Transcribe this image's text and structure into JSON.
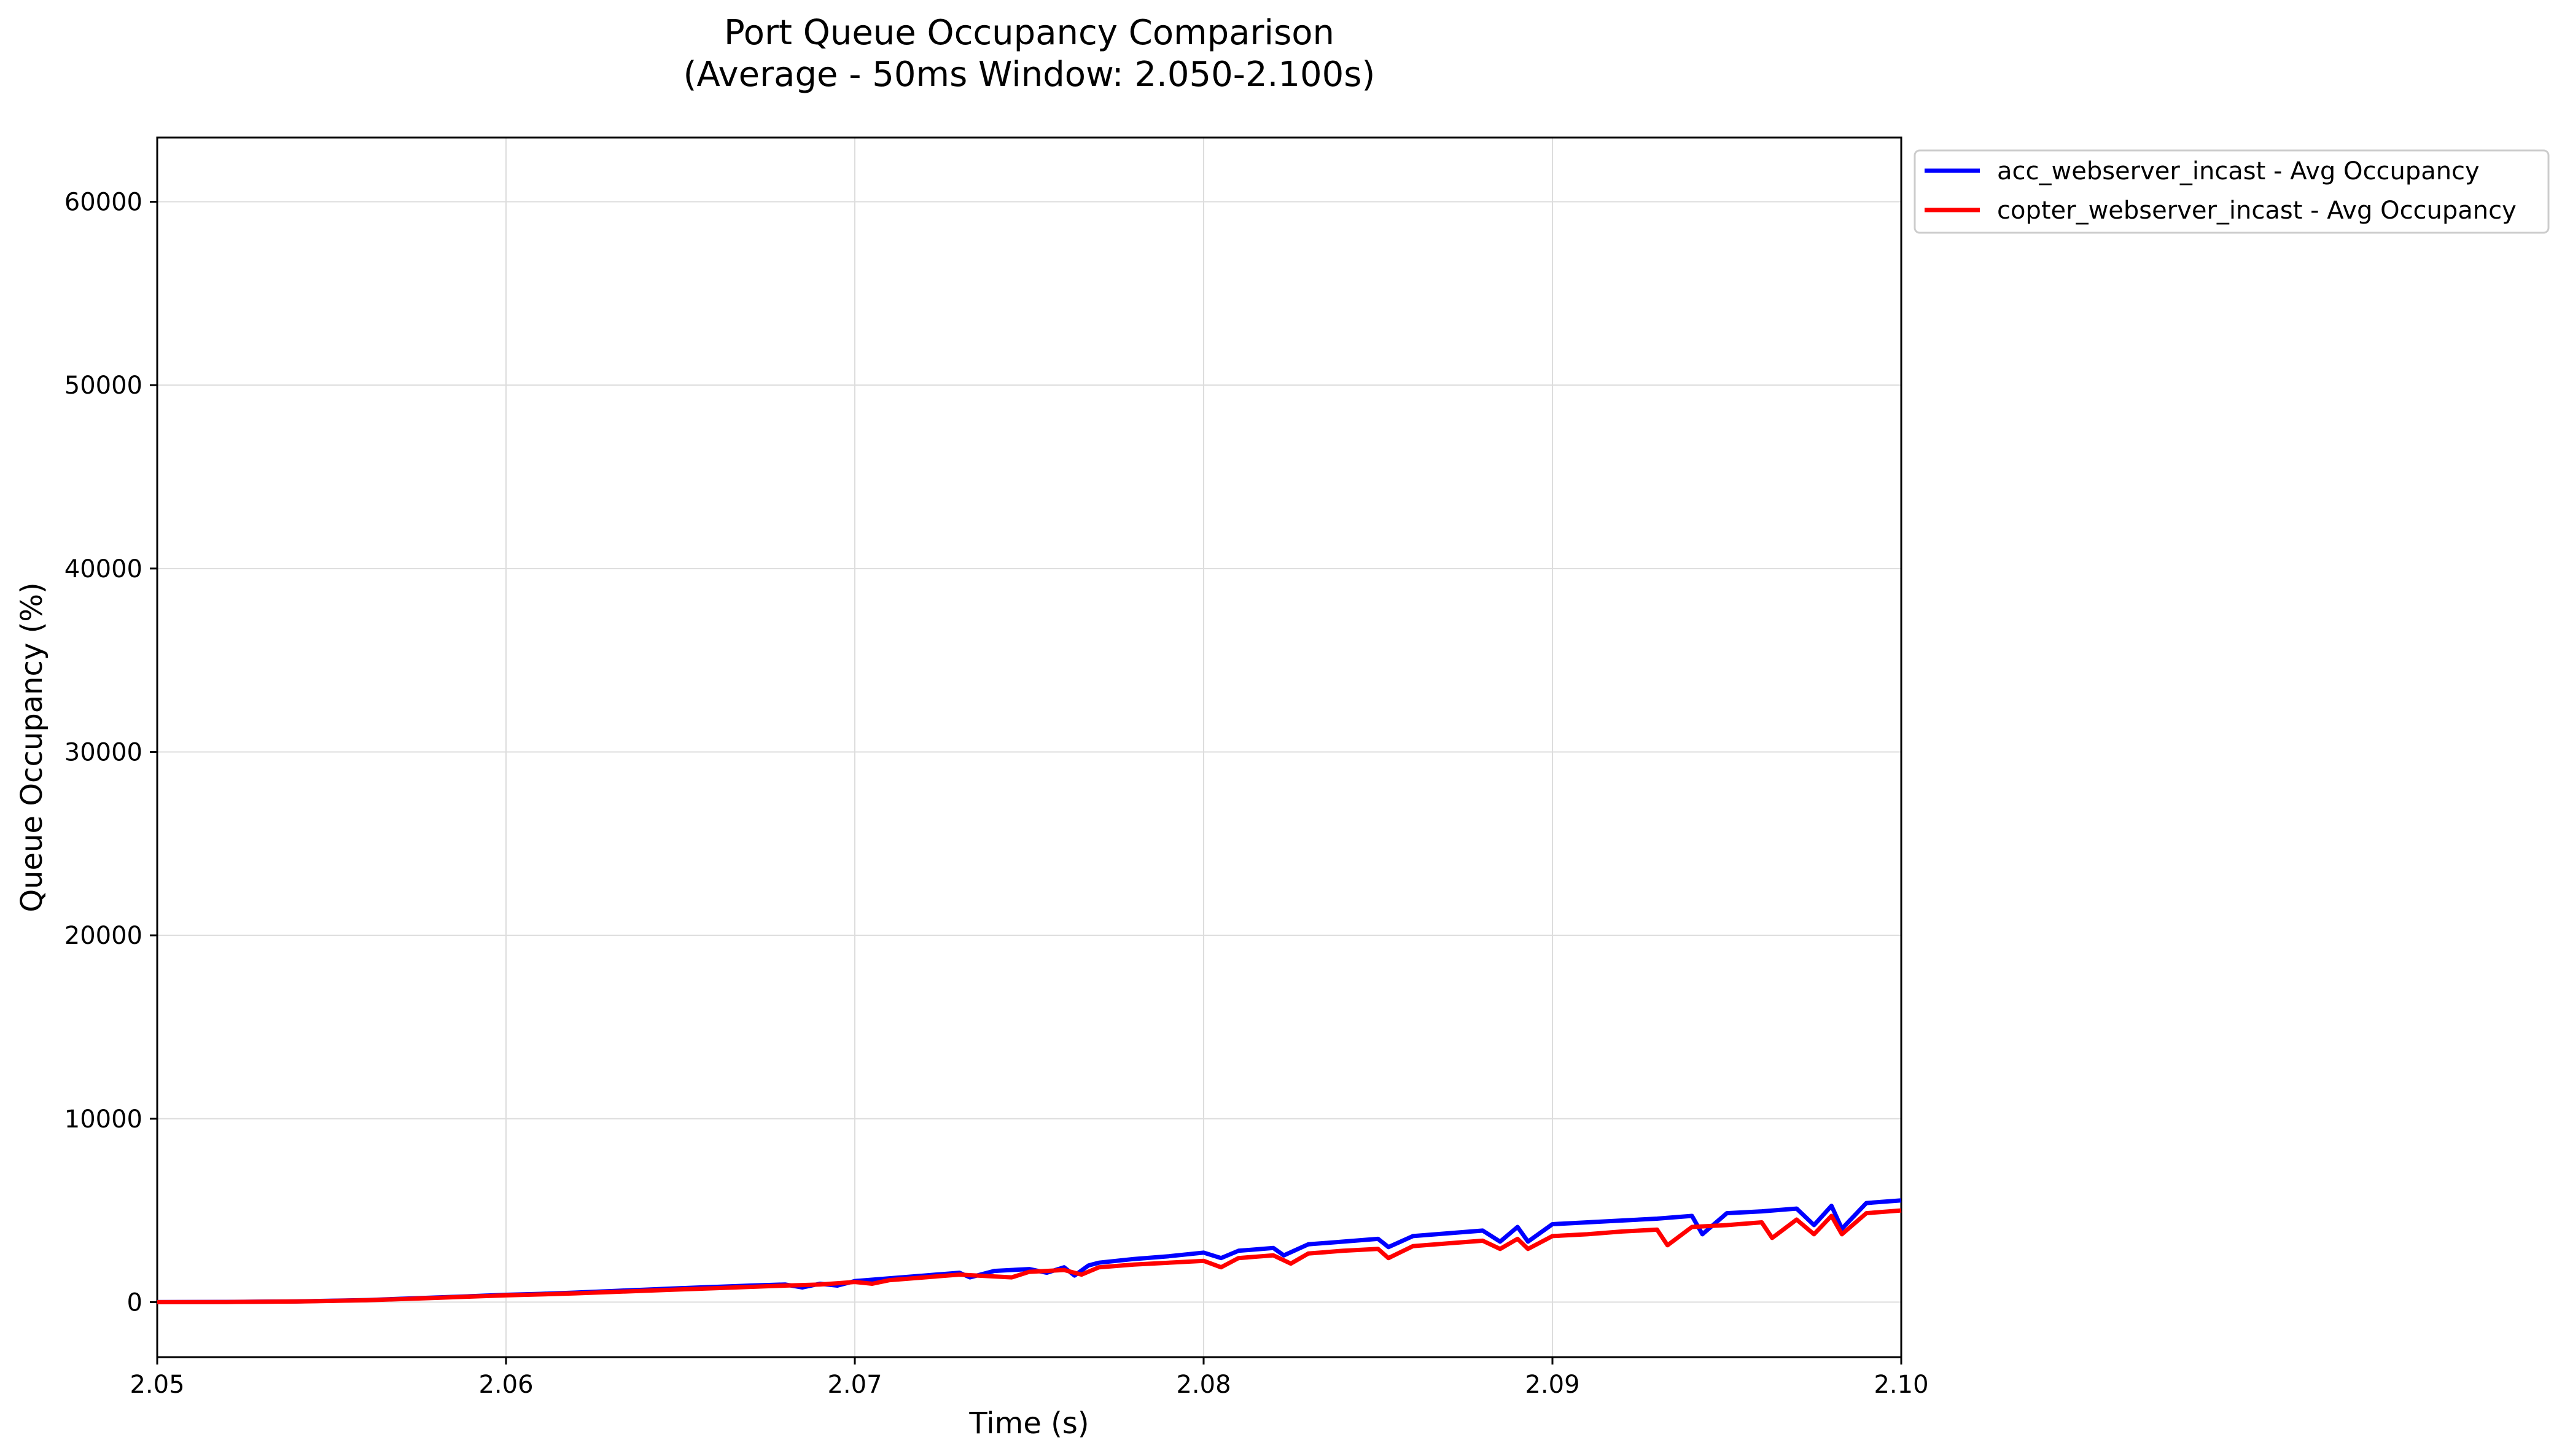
{
  "chart_data": {
    "type": "line",
    "title": "Port Queue Occupancy Comparison",
    "subtitle": "(Average - 50ms Window: 2.050-2.100s)",
    "xlabel": "Time (s)",
    "ylabel": "Queue Occupancy (%)",
    "xlim": [
      2.05,
      2.1
    ],
    "ylim": [
      -3000,
      63500
    ],
    "x_ticks": [
      "2.05",
      "2.06",
      "2.07",
      "2.08",
      "2.09",
      "2.10"
    ],
    "y_ticks": [
      "0",
      "10000",
      "20000",
      "30000",
      "40000",
      "50000",
      "60000"
    ],
    "grid": true,
    "legend_position": "outside-top-right",
    "series": [
      {
        "name": "acc_webserver_incast - Avg Occupancy",
        "color": "#0000ff",
        "points": [
          [
            2.05,
            0
          ],
          [
            2.052,
            10
          ],
          [
            2.054,
            40
          ],
          [
            2.056,
            110
          ],
          [
            2.058,
            250
          ],
          [
            2.059,
            320
          ],
          [
            2.06,
            400
          ],
          [
            2.061,
            450
          ],
          [
            2.062,
            520
          ],
          [
            2.063,
            600
          ],
          [
            2.064,
            680
          ],
          [
            2.065,
            760
          ],
          [
            2.066,
            830
          ],
          [
            2.067,
            900
          ],
          [
            2.068,
            960
          ],
          [
            2.0685,
            800
          ],
          [
            2.069,
            1000
          ],
          [
            2.0695,
            900
          ],
          [
            2.07,
            1150
          ],
          [
            2.071,
            1300
          ],
          [
            2.072,
            1450
          ],
          [
            2.073,
            1600
          ],
          [
            2.0733,
            1350
          ],
          [
            2.074,
            1700
          ],
          [
            2.075,
            1800
          ],
          [
            2.0755,
            1600
          ],
          [
            2.076,
            1900
          ],
          [
            2.0763,
            1450
          ],
          [
            2.0767,
            2000
          ],
          [
            2.077,
            2150
          ],
          [
            2.078,
            2350
          ],
          [
            2.079,
            2500
          ],
          [
            2.08,
            2700
          ],
          [
            2.0805,
            2400
          ],
          [
            2.081,
            2800
          ],
          [
            2.082,
            2950
          ],
          [
            2.0823,
            2550
          ],
          [
            2.083,
            3150
          ],
          [
            2.084,
            3300
          ],
          [
            2.085,
            3450
          ],
          [
            2.0853,
            3000
          ],
          [
            2.086,
            3600
          ],
          [
            2.087,
            3750
          ],
          [
            2.088,
            3900
          ],
          [
            2.0885,
            3300
          ],
          [
            2.089,
            4100
          ],
          [
            2.0893,
            3300
          ],
          [
            2.09,
            4250
          ],
          [
            2.091,
            4350
          ],
          [
            2.092,
            4450
          ],
          [
            2.093,
            4550
          ],
          [
            2.094,
            4700
          ],
          [
            2.0943,
            3700
          ],
          [
            2.095,
            4850
          ],
          [
            2.096,
            4950
          ],
          [
            2.097,
            5100
          ],
          [
            2.0975,
            4200
          ],
          [
            2.098,
            5250
          ],
          [
            2.0983,
            4000
          ],
          [
            2.099,
            5400
          ],
          [
            2.1,
            5550
          ]
        ]
      },
      {
        "name": "copter_webserver_incast - Avg Occupancy",
        "color": "#ff0000",
        "points": [
          [
            2.05,
            0
          ],
          [
            2.052,
            8
          ],
          [
            2.054,
            35
          ],
          [
            2.056,
            100
          ],
          [
            2.058,
            230
          ],
          [
            2.059,
            300
          ],
          [
            2.06,
            370
          ],
          [
            2.061,
            420
          ],
          [
            2.062,
            480
          ],
          [
            2.063,
            550
          ],
          [
            2.064,
            620
          ],
          [
            2.065,
            690
          ],
          [
            2.066,
            760
          ],
          [
            2.067,
            830
          ],
          [
            2.068,
            900
          ],
          [
            2.069,
            960
          ],
          [
            2.07,
            1100
          ],
          [
            2.0705,
            1000
          ],
          [
            2.071,
            1200
          ],
          [
            2.072,
            1350
          ],
          [
            2.073,
            1500
          ],
          [
            2.0745,
            1350
          ],
          [
            2.075,
            1650
          ],
          [
            2.076,
            1750
          ],
          [
            2.0765,
            1500
          ],
          [
            2.077,
            1900
          ],
          [
            2.078,
            2050
          ],
          [
            2.079,
            2150
          ],
          [
            2.08,
            2250
          ],
          [
            2.0805,
            1900
          ],
          [
            2.081,
            2400
          ],
          [
            2.082,
            2550
          ],
          [
            2.0825,
            2100
          ],
          [
            2.083,
            2650
          ],
          [
            2.084,
            2800
          ],
          [
            2.085,
            2900
          ],
          [
            2.0853,
            2400
          ],
          [
            2.086,
            3050
          ],
          [
            2.087,
            3200
          ],
          [
            2.088,
            3350
          ],
          [
            2.0885,
            2900
          ],
          [
            2.089,
            3450
          ],
          [
            2.0893,
            2900
          ],
          [
            2.09,
            3600
          ],
          [
            2.091,
            3700
          ],
          [
            2.092,
            3850
          ],
          [
            2.093,
            3950
          ],
          [
            2.0933,
            3100
          ],
          [
            2.094,
            4100
          ],
          [
            2.095,
            4200
          ],
          [
            2.096,
            4350
          ],
          [
            2.0963,
            3500
          ],
          [
            2.097,
            4500
          ],
          [
            2.0975,
            3700
          ],
          [
            2.098,
            4700
          ],
          [
            2.0983,
            3700
          ],
          [
            2.099,
            4850
          ],
          [
            2.1,
            5000
          ]
        ]
      }
    ]
  }
}
